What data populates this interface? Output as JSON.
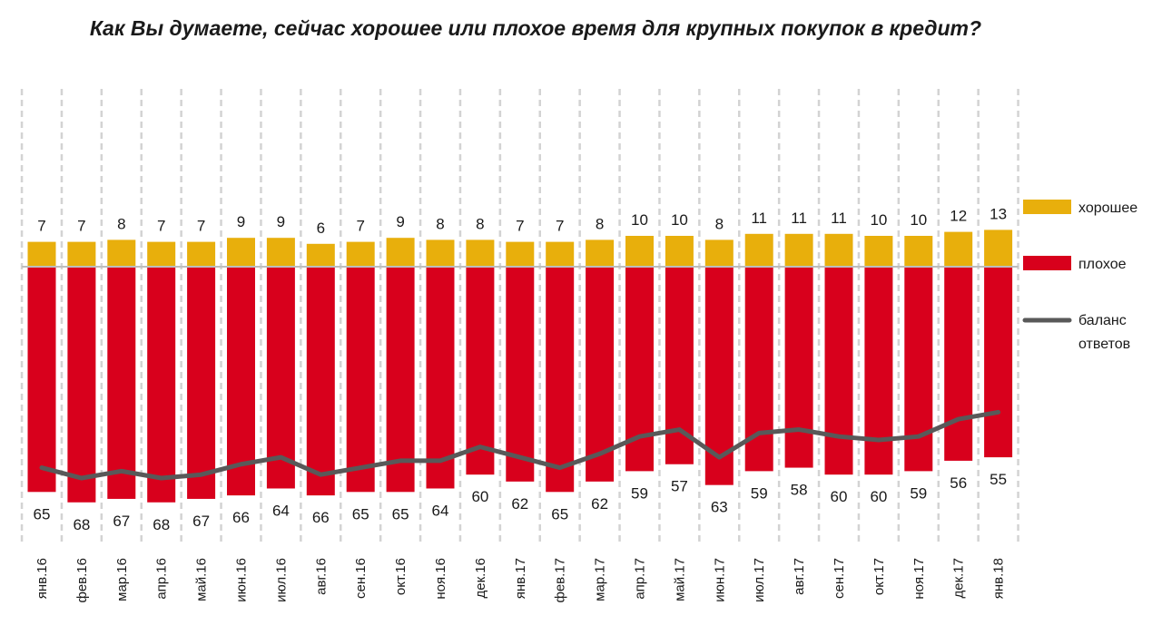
{
  "chart_data": {
    "type": "bar",
    "title": "Как Вы думаете, сейчас хорошее или плохое время для крупных покупок в кредит?",
    "categories": [
      "янв.16",
      "фев.16",
      "мар.16",
      "апр.16",
      "май.16",
      "июн.16",
      "июл.16",
      "авг.16",
      "сен.16",
      "окт.16",
      "ноя.16",
      "дек.16",
      "янв.17",
      "фев.17",
      "мар.17",
      "апр.17",
      "май.17",
      "июн.17",
      "июл.17",
      "авг.17",
      "сен.17",
      "окт.17",
      "ноя.17",
      "дек.17",
      "янв.18"
    ],
    "series": [
      {
        "name": "хорошее",
        "color": "#E8AF0C",
        "values": [
          7,
          7,
          8,
          7,
          7,
          9,
          9,
          6,
          7,
          9,
          8,
          8,
          7,
          7,
          8,
          10,
          10,
          8,
          11,
          11,
          11,
          10,
          10,
          12,
          13
        ]
      },
      {
        "name": "плохое",
        "color": "#D8001C",
        "values": [
          65,
          68,
          67,
          68,
          67,
          66,
          64,
          66,
          65,
          65,
          64,
          60,
          62,
          65,
          62,
          59,
          57,
          63,
          59,
          58,
          60,
          60,
          59,
          56,
          55
        ]
      },
      {
        "name": "баланс\nответов",
        "type": "line",
        "color": "#595959",
        "values": [
          -58,
          -61,
          -59,
          -61,
          -60,
          -57,
          -55,
          -60,
          -58,
          -56,
          -56,
          -52,
          -55,
          -58,
          -54,
          -49,
          -47,
          -55,
          -48,
          -47,
          -49,
          -50,
          -49,
          -44,
          -42
        ]
      }
    ],
    "legend_position": "right",
    "grid": "vertical dashed"
  }
}
